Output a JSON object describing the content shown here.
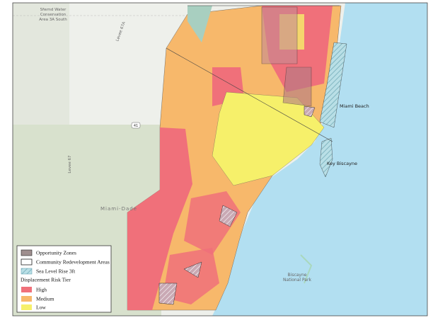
{
  "map": {
    "labels": {
      "conservation": [
        "Sfwmd Water",
        "Conservation",
        "Area 3A South"
      ],
      "levee_top": "Levee 67A",
      "levee_left": "Levee 67",
      "highway": "41",
      "county": "Miami-Dade",
      "beach": "Miami Beach",
      "key": "Key Biscayne",
      "park": [
        "Biscayne",
        "National Park"
      ]
    },
    "legend": {
      "overlays": [
        "Opportunity Zones",
        "Community Redevelopment Areas",
        "Sea Level Rise 3ft"
      ],
      "tier_title": "Displacement Risk Tier",
      "tiers": [
        "High",
        "Medium",
        "Low"
      ]
    }
  }
}
